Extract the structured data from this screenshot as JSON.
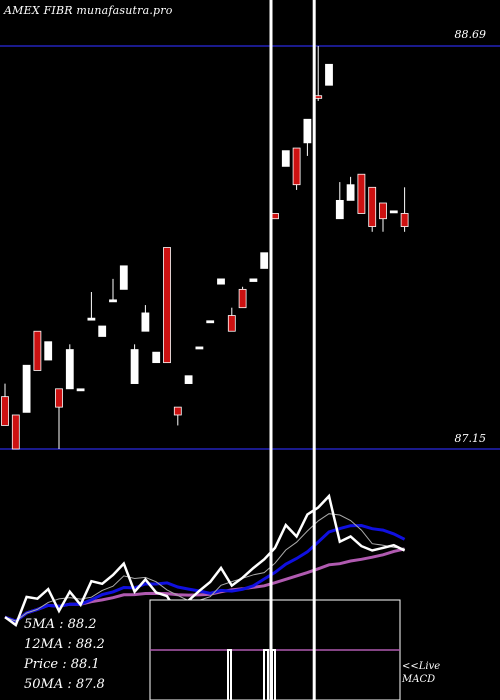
{
  "header": {
    "title": "AMEX  FIBR munafasutra.pro"
  },
  "price_levels": {
    "top": "88.69",
    "bottom": "87.15"
  },
  "legend": {
    "ma5": "5MA : 88.2",
    "ma12": "12MA : 88.2",
    "price": "Price  : 88.1",
    "ma50": "50MA : 87.8"
  },
  "macd_label": {
    "line1": "<<Live",
    "line2": "MACD"
  },
  "chart_data": {
    "type": "candlestick",
    "price_range": [
      87.15,
      88.69
    ],
    "vertical_markers_at_candle": [
      25,
      29
    ],
    "candles": [
      {
        "o": 87.35,
        "h": 87.4,
        "l": 87.24,
        "c": 87.24
      },
      {
        "o": 87.28,
        "h": 87.28,
        "l": 87.15,
        "c": 87.15
      },
      {
        "o": 87.29,
        "h": 87.47,
        "l": 87.29,
        "c": 87.47
      },
      {
        "o": 87.6,
        "h": 87.6,
        "l": 87.45,
        "c": 87.45
      },
      {
        "o": 87.49,
        "h": 87.56,
        "l": 87.49,
        "c": 87.56
      },
      {
        "o": 87.38,
        "h": 87.38,
        "l": 87.15,
        "c": 87.31
      },
      {
        "o": 87.38,
        "h": 87.55,
        "l": 87.38,
        "c": 87.53
      },
      {
        "o": 87.38,
        "h": 87.38,
        "l": 87.38,
        "c": 87.38
      },
      {
        "o": 87.65,
        "h": 87.75,
        "l": 87.65,
        "c": 87.65
      },
      {
        "o": 87.58,
        "h": 87.62,
        "l": 87.58,
        "c": 87.62
      },
      {
        "o": 87.72,
        "h": 87.8,
        "l": 87.72,
        "c": 87.72
      },
      {
        "o": 87.76,
        "h": 87.85,
        "l": 87.76,
        "c": 87.85
      },
      {
        "o": 87.4,
        "h": 87.55,
        "l": 87.4,
        "c": 87.53
      },
      {
        "o": 87.6,
        "h": 87.7,
        "l": 87.6,
        "c": 87.67
      },
      {
        "o": 87.48,
        "h": 87.52,
        "l": 87.48,
        "c": 87.52
      },
      {
        "o": 87.92,
        "h": 87.92,
        "l": 87.48,
        "c": 87.48
      },
      {
        "o": 87.31,
        "h": 87.31,
        "l": 87.24,
        "c": 87.28
      },
      {
        "o": 87.4,
        "h": 87.43,
        "l": 87.4,
        "c": 87.43
      },
      {
        "o": 87.54,
        "h": 87.54,
        "l": 87.54,
        "c": 87.54
      },
      {
        "o": 87.64,
        "h": 87.64,
        "l": 87.64,
        "c": 87.64
      },
      {
        "o": 87.78,
        "h": 87.8,
        "l": 87.78,
        "c": 87.8
      },
      {
        "o": 87.66,
        "h": 87.69,
        "l": 87.6,
        "c": 87.6
      },
      {
        "o": 87.76,
        "h": 87.77,
        "l": 87.69,
        "c": 87.69
      },
      {
        "o": 87.79,
        "h": 87.8,
        "l": 87.79,
        "c": 87.8
      },
      {
        "o": 87.84,
        "h": 87.9,
        "l": 87.84,
        "c": 87.9
      },
      {
        "o": 88.05,
        "h": 88.05,
        "l": 88.03,
        "c": 88.03
      },
      {
        "o": 88.23,
        "h": 88.29,
        "l": 88.23,
        "c": 88.29
      },
      {
        "o": 88.3,
        "h": 88.3,
        "l": 88.14,
        "c": 88.16
      },
      {
        "o": 88.32,
        "h": 88.41,
        "l": 88.27,
        "c": 88.41
      },
      {
        "o": 88.5,
        "h": 88.69,
        "l": 88.48,
        "c": 88.49
      },
      {
        "o": 88.54,
        "h": 88.62,
        "l": 88.54,
        "c": 88.62
      },
      {
        "o": 88.03,
        "h": 88.17,
        "l": 88.03,
        "c": 88.1
      },
      {
        "o": 88.1,
        "h": 88.19,
        "l": 88.1,
        "c": 88.16
      },
      {
        "o": 88.2,
        "h": 88.2,
        "l": 88.05,
        "c": 88.05
      },
      {
        "o": 88.15,
        "h": 88.15,
        "l": 87.98,
        "c": 88.0
      },
      {
        "o": 88.09,
        "h": 88.09,
        "l": 87.98,
        "c": 88.03
      },
      {
        "o": 88.06,
        "h": 88.06,
        "l": 88.06,
        "c": 88.06
      },
      {
        "o": 88.05,
        "h": 88.15,
        "l": 87.98,
        "c": 88.0
      }
    ]
  }
}
